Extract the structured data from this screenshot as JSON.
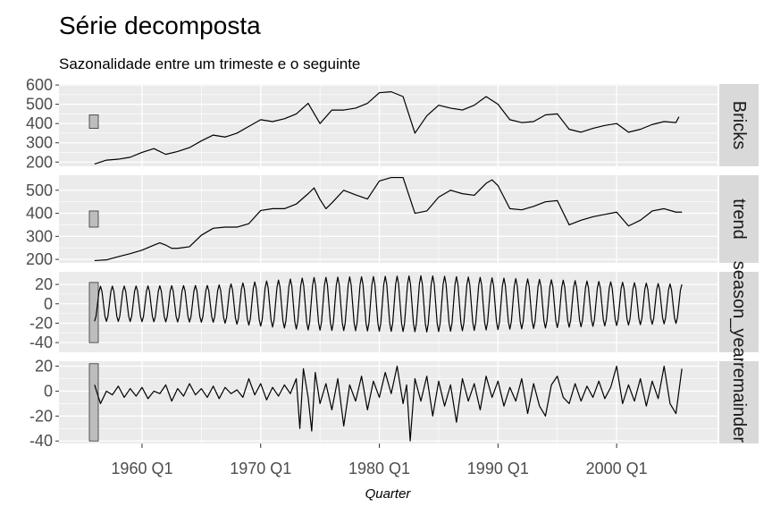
{
  "chart_data": {
    "type": "line",
    "title": "Série decomposta",
    "subtitle": "Sazonalidade entre um trimeste e o seguinte",
    "xlabel": "Quarter",
    "xlim": [
      1953.0,
      2008.5
    ],
    "x_ticks": [
      {
        "value": 1960,
        "label": "1960 Q1"
      },
      {
        "value": 1970,
        "label": "1970 Q1"
      },
      {
        "value": 1980,
        "label": "1980 Q1"
      },
      {
        "value": 1990,
        "label": "1990 Q1"
      },
      {
        "value": 2000,
        "label": "2000 Q1"
      }
    ],
    "colors": {
      "panel_bg": "#ebebeb",
      "grid": "#ffffff",
      "strip_bg": "#d9d9d9",
      "line": "#000000",
      "scale_bar": "#bdbdbd"
    },
    "panels": [
      {
        "name": "Bricks",
        "strip": "Bricks",
        "ylim": [
          178,
          605
        ],
        "y_ticks": [
          200,
          300,
          400,
          500,
          600
        ],
        "scale_bar": [
          375,
          445
        ],
        "points": [
          [
            1956,
            190
          ],
          [
            1957,
            210
          ],
          [
            1958,
            215
          ],
          [
            1959,
            225
          ],
          [
            1960,
            250
          ],
          [
            1961,
            270
          ],
          [
            1962,
            240
          ],
          [
            1963,
            255
          ],
          [
            1964,
            275
          ],
          [
            1965,
            310
          ],
          [
            1966,
            340
          ],
          [
            1967,
            330
          ],
          [
            1968,
            350
          ],
          [
            1969,
            385
          ],
          [
            1970,
            420
          ],
          [
            1971,
            410
          ],
          [
            1972,
            425
          ],
          [
            1973,
            450
          ],
          [
            1974,
            505
          ],
          [
            1975,
            400
          ],
          [
            1976,
            470
          ],
          [
            1977,
            470
          ],
          [
            1978,
            480
          ],
          [
            1979,
            505
          ],
          [
            1980,
            560
          ],
          [
            1981,
            565
          ],
          [
            1982,
            540
          ],
          [
            1983,
            350
          ],
          [
            1984,
            440
          ],
          [
            1985,
            495
          ],
          [
            1986,
            480
          ],
          [
            1987,
            470
          ],
          [
            1988,
            495
          ],
          [
            1989,
            540
          ],
          [
            1990,
            500
          ],
          [
            1991,
            420
          ],
          [
            1992,
            405
          ],
          [
            1993,
            410
          ],
          [
            1994,
            445
          ],
          [
            1995,
            450
          ],
          [
            1996,
            370
          ],
          [
            1997,
            355
          ],
          [
            1998,
            375
          ],
          [
            1999,
            390
          ],
          [
            2000,
            400
          ],
          [
            2001,
            355
          ],
          [
            2002,
            370
          ],
          [
            2003,
            395
          ],
          [
            2004,
            410
          ],
          [
            2005,
            405
          ],
          [
            2005.25,
            435
          ]
        ]
      },
      {
        "name": "trend",
        "strip": "trend",
        "ylim": [
          185,
          565
        ],
        "y_ticks": [
          200,
          300,
          400,
          500
        ],
        "scale_bar": [
          340,
          410
        ],
        "points": [
          [
            1956,
            195
          ],
          [
            1957,
            198
          ],
          [
            1958,
            212
          ],
          [
            1959,
            225
          ],
          [
            1960,
            240
          ],
          [
            1961,
            262
          ],
          [
            1961.5,
            272
          ],
          [
            1962,
            262
          ],
          [
            1962.5,
            248
          ],
          [
            1963,
            248
          ],
          [
            1964,
            255
          ],
          [
            1965,
            305
          ],
          [
            1966,
            335
          ],
          [
            1967,
            340
          ],
          [
            1968,
            340
          ],
          [
            1969,
            355
          ],
          [
            1970,
            412
          ],
          [
            1971,
            420
          ],
          [
            1972,
            420
          ],
          [
            1973,
            440
          ],
          [
            1974,
            485
          ],
          [
            1974.5,
            510
          ],
          [
            1975,
            460
          ],
          [
            1975.5,
            420
          ],
          [
            1976,
            445
          ],
          [
            1977,
            500
          ],
          [
            1978,
            480
          ],
          [
            1979,
            462
          ],
          [
            1980,
            540
          ],
          [
            1981,
            555
          ],
          [
            1982,
            555
          ],
          [
            1983,
            400
          ],
          [
            1984,
            410
          ],
          [
            1985,
            470
          ],
          [
            1986,
            500
          ],
          [
            1987,
            485
          ],
          [
            1988,
            478
          ],
          [
            1989,
            530
          ],
          [
            1989.5,
            545
          ],
          [
            1990,
            520
          ],
          [
            1991,
            420
          ],
          [
            1992,
            415
          ],
          [
            1993,
            430
          ],
          [
            1994,
            450
          ],
          [
            1995,
            455
          ],
          [
            1996,
            350
          ],
          [
            1997,
            370
          ],
          [
            1998,
            385
          ],
          [
            1999,
            395
          ],
          [
            2000,
            405
          ],
          [
            2001,
            345
          ],
          [
            2002,
            370
          ],
          [
            2003,
            410
          ],
          [
            2004,
            420
          ],
          [
            2005,
            405
          ],
          [
            2005.5,
            405
          ]
        ]
      },
      {
        "name": "season_year",
        "strip": "season_year",
        "ylim": [
          -50,
          33
        ],
        "y_ticks": [
          -40,
          -20,
          0,
          20
        ],
        "scale_bar": [
          -40,
          22
        ],
        "amplitude": [
          [
            1956,
            18
          ],
          [
            1966,
            19
          ],
          [
            1974,
            27
          ],
          [
            1984,
            29
          ],
          [
            1994,
            25
          ],
          [
            2005.5,
            20
          ]
        ],
        "start": 1956,
        "end": 2005.5,
        "period": 1
      },
      {
        "name": "remainder",
        "strip": "remainder",
        "ylim": [
          -42,
          24
        ],
        "y_ticks": [
          -40,
          -20,
          0,
          20
        ],
        "scale_bar": [
          -40,
          22
        ],
        "points": [
          [
            1956,
            5
          ],
          [
            1956.5,
            -10
          ],
          [
            1957,
            0
          ],
          [
            1957.5,
            -3
          ],
          [
            1958,
            4
          ],
          [
            1958.5,
            -5
          ],
          [
            1959,
            2
          ],
          [
            1959.5,
            -4
          ],
          [
            1960,
            3
          ],
          [
            1960.5,
            -6
          ],
          [
            1961,
            0
          ],
          [
            1961.5,
            -2
          ],
          [
            1962,
            5
          ],
          [
            1962.5,
            -8
          ],
          [
            1963,
            2
          ],
          [
            1963.5,
            -4
          ],
          [
            1964,
            6
          ],
          [
            1964.5,
            -3
          ],
          [
            1965,
            2
          ],
          [
            1965.5,
            -5
          ],
          [
            1966,
            4
          ],
          [
            1966.5,
            -6
          ],
          [
            1967,
            3
          ],
          [
            1967.5,
            -2
          ],
          [
            1968,
            1
          ],
          [
            1968.5,
            -5
          ],
          [
            1969,
            10
          ],
          [
            1969.5,
            -3
          ],
          [
            1970,
            6
          ],
          [
            1970.5,
            -7
          ],
          [
            1971,
            3
          ],
          [
            1971.5,
            -4
          ],
          [
            1972,
            5
          ],
          [
            1972.5,
            -2
          ],
          [
            1973,
            10
          ],
          [
            1973.3,
            -30
          ],
          [
            1973.6,
            18
          ],
          [
            1974,
            -5
          ],
          [
            1974.3,
            -32
          ],
          [
            1974.6,
            15
          ],
          [
            1975,
            -10
          ],
          [
            1975.5,
            6
          ],
          [
            1976,
            -15
          ],
          [
            1976.5,
            10
          ],
          [
            1977,
            -28
          ],
          [
            1977.5,
            5
          ],
          [
            1978,
            -8
          ],
          [
            1978.5,
            12
          ],
          [
            1979,
            -15
          ],
          [
            1979.5,
            8
          ],
          [
            1980,
            -5
          ],
          [
            1980.5,
            15
          ],
          [
            1981,
            -2
          ],
          [
            1981.5,
            20
          ],
          [
            1982,
            -10
          ],
          [
            1982.3,
            5
          ],
          [
            1982.6,
            -40
          ],
          [
            1983,
            10
          ],
          [
            1983.5,
            -8
          ],
          [
            1984,
            12
          ],
          [
            1984.5,
            -20
          ],
          [
            1985,
            8
          ],
          [
            1985.5,
            -12
          ],
          [
            1986,
            5
          ],
          [
            1986.5,
            -25
          ],
          [
            1987,
            10
          ],
          [
            1987.5,
            -8
          ],
          [
            1988,
            6
          ],
          [
            1988.5,
            -15
          ],
          [
            1989,
            12
          ],
          [
            1989.5,
            -5
          ],
          [
            1990,
            8
          ],
          [
            1990.5,
            -12
          ],
          [
            1991,
            3
          ],
          [
            1991.5,
            -8
          ],
          [
            1992,
            10
          ],
          [
            1992.5,
            -18
          ],
          [
            1993,
            6
          ],
          [
            1993.5,
            -12
          ],
          [
            1994,
            -20
          ],
          [
            1994.5,
            5
          ],
          [
            1995,
            12
          ],
          [
            1995.5,
            -5
          ],
          [
            1996,
            -10
          ],
          [
            1996.5,
            6
          ],
          [
            1997,
            -8
          ],
          [
            1997.5,
            4
          ],
          [
            1998,
            -5
          ],
          [
            1998.5,
            8
          ],
          [
            1999,
            -6
          ],
          [
            1999.5,
            3
          ],
          [
            2000,
            20
          ],
          [
            2000.5,
            -10
          ],
          [
            2001,
            5
          ],
          [
            2001.5,
            -8
          ],
          [
            2002,
            10
          ],
          [
            2002.5,
            -12
          ],
          [
            2003,
            8
          ],
          [
            2003.5,
            -6
          ],
          [
            2004,
            20
          ],
          [
            2004.5,
            -10
          ],
          [
            2005,
            -18
          ],
          [
            2005.5,
            18
          ]
        ]
      }
    ]
  }
}
